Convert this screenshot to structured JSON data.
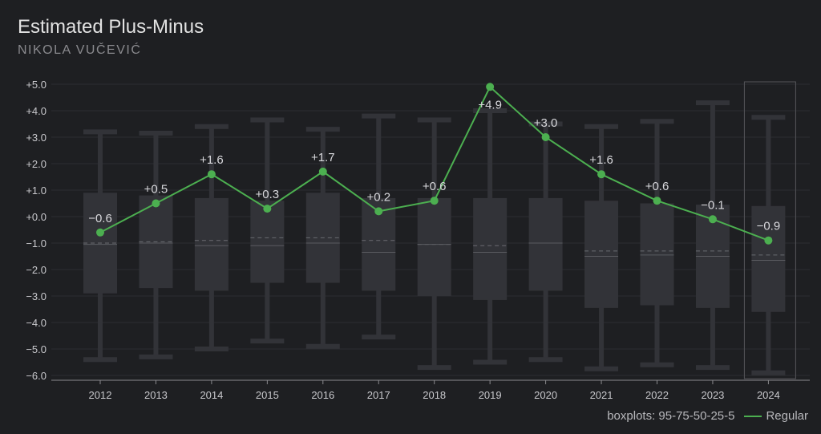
{
  "title": "Estimated Plus-Minus",
  "subtitle": "NIKOLA VUČEVIĆ",
  "legend": {
    "boxplot_label": "boxplots: 95-75-50-25-5",
    "series_label": "Regular"
  },
  "colors": {
    "background": "#1e1f22",
    "box": "#323338",
    "grid": "#2c2d31",
    "line": "#4caf50",
    "text": "#c8c8cc"
  },
  "chart_data": {
    "type": "line",
    "title": "Estimated Plus-Minus",
    "subtitle": "NIKOLA VUČEVIĆ",
    "categories": [
      "2012",
      "2013",
      "2014",
      "2015",
      "2016",
      "2017",
      "2018",
      "2019",
      "2020",
      "2021",
      "2022",
      "2023",
      "2024"
    ],
    "ylim": [
      -6.0,
      5.0
    ],
    "yticks": [
      "+5.0",
      "+4.0",
      "+3.0",
      "+2.0",
      "+1.0",
      "+0.0",
      "−1.0",
      "−2.0",
      "−3.0",
      "−4.0",
      "−5.0",
      "−6.0"
    ],
    "grid": true,
    "highlighted_category": "2024",
    "series": [
      {
        "name": "Regular",
        "values": [
          -0.6,
          0.5,
          1.6,
          0.3,
          1.7,
          0.2,
          0.6,
          4.9,
          3.0,
          1.6,
          0.6,
          -0.1,
          -0.9
        ],
        "labels": [
          "−0.6",
          "+0.5",
          "+1.6",
          "+0.3",
          "+1.7",
          "+0.2",
          "+0.6",
          "+4.9",
          "+3.0",
          "+1.6",
          "+0.6",
          "−0.1",
          "−0.9"
        ]
      }
    ],
    "boxplots": {
      "percentiles": "95-75-50-25-5",
      "p95": [
        3.2,
        3.15,
        3.4,
        3.65,
        3.3,
        3.8,
        3.65,
        4.0,
        3.5,
        3.4,
        3.6,
        4.3,
        3.75
      ],
      "p75": [
        0.9,
        0.8,
        0.7,
        0.6,
        0.9,
        0.7,
        0.7,
        0.7,
        0.7,
        0.6,
        0.5,
        0.45,
        0.4
      ],
      "p50": [
        -1.05,
        -1.0,
        -1.1,
        -1.1,
        -1.0,
        -1.35,
        -1.05,
        -1.35,
        -1.0,
        -1.5,
        -1.45,
        -1.5,
        -1.65
      ],
      "mean": [
        -1.0,
        -0.95,
        -0.9,
        -0.8,
        -0.8,
        -0.9,
        -1.05,
        -1.1,
        -1.0,
        -1.3,
        -1.3,
        -1.3,
        -1.45
      ],
      "p25": [
        -2.9,
        -2.7,
        -2.8,
        -2.5,
        -2.5,
        -2.8,
        -3.0,
        -3.15,
        -2.8,
        -3.45,
        -3.35,
        -3.45,
        -3.6
      ],
      "p5": [
        -5.4,
        -5.3,
        -5.0,
        -4.7,
        -4.9,
        -4.55,
        -5.7,
        -5.5,
        -5.4,
        -5.75,
        -5.6,
        -5.7,
        -5.9
      ]
    }
  }
}
